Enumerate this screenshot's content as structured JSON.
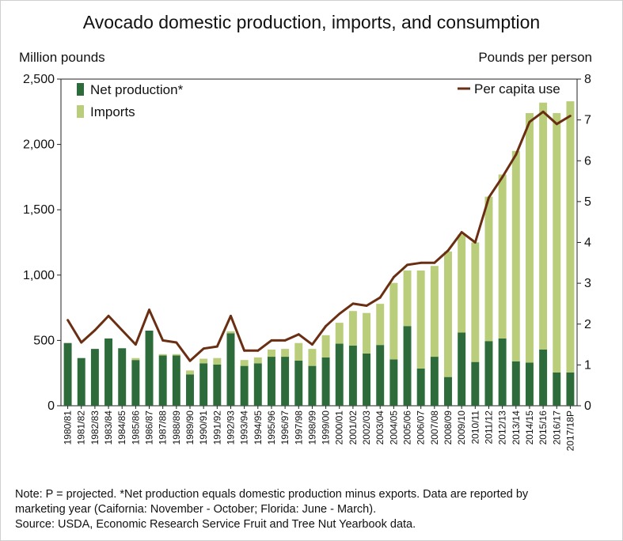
{
  "chart_data": {
    "type": "bar",
    "title": "Avocado domestic production, imports, and consumption",
    "ylabel": "Million pounds",
    "y2label": "Pounds per person",
    "ylim": [
      0,
      2500
    ],
    "y2lim": [
      0,
      8
    ],
    "yticks": [
      "0",
      "500",
      "1,000",
      "1,500",
      "2,000",
      "2,500"
    ],
    "y2ticks": [
      "0",
      "1",
      "2",
      "3",
      "4",
      "5",
      "6",
      "7",
      "8"
    ],
    "categories": [
      "1980/81",
      "1981/82",
      "1982/83",
      "1983/84",
      "1984/85",
      "1985/86",
      "1986/87",
      "1987/88",
      "1988/89",
      "1989/90",
      "1990/91",
      "1991/92",
      "1992/93",
      "1993/94",
      "1994/95",
      "1995/96",
      "1996/97",
      "1997/98",
      "1998/99",
      "1999/00",
      "2000/01",
      "2001/02",
      "2002/03",
      "2003/04",
      "2004/05",
      "2005/06",
      "2006/07",
      "2007/08",
      "2008/09",
      "2009/10",
      "2010/11",
      "2011/12",
      "2012/13",
      "2013/14",
      "2014/15",
      "2015/16",
      "2016/17",
      "2017/18P"
    ],
    "series": [
      {
        "name": "Net production*",
        "kind": "bar",
        "color": "#2e6b3a",
        "values": [
          480,
          365,
          435,
          515,
          440,
          350,
          575,
          385,
          385,
          240,
          325,
          315,
          555,
          305,
          325,
          375,
          375,
          345,
          305,
          370,
          475,
          460,
          400,
          465,
          355,
          610,
          285,
          375,
          220,
          560,
          335,
          495,
          515,
          340,
          330,
          430,
          255,
          255
        ]
      },
      {
        "name": "Imports",
        "kind": "bar",
        "color": "#b9cd7a",
        "values": [
          0,
          0,
          0,
          0,
          0,
          15,
          0,
          10,
          10,
          30,
          35,
          50,
          15,
          45,
          45,
          55,
          60,
          135,
          130,
          170,
          160,
          265,
          310,
          315,
          585,
          425,
          750,
          695,
          960,
          750,
          915,
          1105,
          1255,
          1610,
          1910,
          1890,
          1985,
          2075
        ]
      },
      {
        "name": "Per capita use",
        "kind": "line",
        "axis": "right",
        "color": "#6a2e12",
        "values": [
          2.1,
          1.55,
          1.85,
          2.2,
          1.85,
          1.5,
          2.35,
          1.6,
          1.55,
          1.1,
          1.4,
          1.45,
          2.2,
          1.35,
          1.35,
          1.6,
          1.6,
          1.75,
          1.5,
          1.95,
          2.25,
          2.5,
          2.45,
          2.65,
          3.15,
          3.45,
          3.5,
          3.5,
          3.8,
          4.25,
          4.0,
          5.1,
          5.6,
          6.15,
          6.95,
          7.2,
          6.9,
          7.1
        ]
      }
    ],
    "grid": false,
    "legend_left": "top-left",
    "legend_right": "top-right"
  },
  "notes": {
    "line1": "Note: P = projected. *Net production equals domestic production minus exports. Data are reported  by",
    "line2": "marketing year (Caifornia: November - October; Florida: June - March).",
    "line3": "Source: USDA, Economic Research Service Fruit and Tree Nut Yearbook data."
  }
}
